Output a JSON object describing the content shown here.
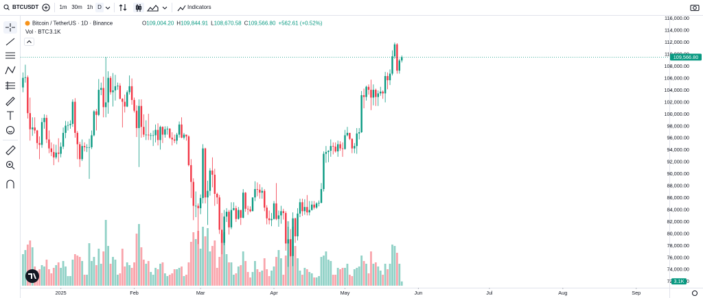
{
  "toolbar": {
    "symbol": "BTCUSDT",
    "intervals": [
      "1m",
      "30m",
      "1h",
      "D"
    ],
    "indicators": "Indicators"
  },
  "chart_data": {
    "type": "candlestick",
    "title": "Bitcoin / TetherUS · 1D · Binance",
    "ohlc": [
      {
        "label": "O",
        "value": "109,004.20"
      },
      {
        "label": "H",
        "value": "109,844.91"
      },
      {
        "label": "L",
        "value": "108,670.58"
      },
      {
        "label": "C",
        "value": "109,566.80"
      }
    ],
    "change": "+562.61 (+0.52%)",
    "volume_title": "Vol · BTC",
    "volume_label": "3.1K",
    "price_label": "109,566.80",
    "up_color": "#089981",
    "down_color": "#f23645",
    "ylim": [
      71000,
      116600
    ],
    "xlim": [
      -1,
      273
    ],
    "volume_ylim": [
      0,
      60000
    ],
    "yticks": [
      {
        "value": 72000,
        "label": "72,000.00"
      },
      {
        "value": 74000,
        "label": "74,000.00"
      },
      {
        "value": 76000,
        "label": "76,000.00"
      },
      {
        "value": 78000,
        "label": "78,000.00"
      },
      {
        "value": 80000,
        "label": "80,000.00"
      },
      {
        "value": 82000,
        "label": "82,000.00"
      },
      {
        "value": 84000,
        "label": "84,000.00"
      },
      {
        "value": 86000,
        "label": "86,000.00"
      },
      {
        "value": 88000,
        "label": "88,000.00"
      },
      {
        "value": 90000,
        "label": "90,000.00"
      },
      {
        "value": 92000,
        "label": "92,000.00"
      },
      {
        "value": 94000,
        "label": "94,000.00"
      },
      {
        "value": 96000,
        "label": "96,000.00"
      },
      {
        "value": 98000,
        "label": "98,000.00"
      },
      {
        "value": 100000,
        "label": "100,000.00"
      },
      {
        "value": 102000,
        "label": "102,000.00"
      },
      {
        "value": 104000,
        "label": "104,000.00"
      },
      {
        "value": 106000,
        "label": "106,000.00"
      },
      {
        "value": 108000,
        "label": "108,000.00"
      },
      {
        "value": 110000,
        "label": "110,000.00"
      },
      {
        "value": 112000,
        "label": "112,000.00"
      },
      {
        "value": 114000,
        "label": "114,000.00"
      },
      {
        "value": 116000,
        "label": "116,000.00"
      }
    ],
    "xticks": [
      {
        "value": 16,
        "label": "2025"
      },
      {
        "value": 47,
        "label": "Feb"
      },
      {
        "value": 75,
        "label": "Mar"
      },
      {
        "value": 106,
        "label": "Apr"
      },
      {
        "value": 136,
        "label": "May"
      },
      {
        "value": 167,
        "label": "Jun"
      },
      {
        "value": 197,
        "label": "Jul"
      },
      {
        "value": 228,
        "label": "Aug"
      },
      {
        "value": 259,
        "label": "Sep"
      }
    ],
    "candles": [
      [
        104500,
        107000,
        103700,
        106100
      ],
      [
        106100,
        108300,
        105300,
        106200
      ],
      [
        106200,
        106500,
        99300,
        100200
      ],
      [
        100200,
        102800,
        95600,
        97500
      ],
      [
        97500,
        99500,
        96400,
        97800
      ],
      [
        97800,
        99500,
        96800,
        97300
      ],
      [
        97300,
        97400,
        94200,
        95200
      ],
      [
        95200,
        96300,
        92500,
        94900
      ],
      [
        94900,
        99400,
        94400,
        98700
      ],
      [
        98700,
        100000,
        97600,
        99400
      ],
      [
        99400,
        99900,
        95200,
        95800
      ],
      [
        95800,
        97300,
        93500,
        94300
      ],
      [
        94300,
        95300,
        93000,
        93700
      ],
      [
        93700,
        95000,
        91500,
        92800
      ],
      [
        92800,
        94900,
        92500,
        93600
      ],
      [
        93600,
        96000,
        92000,
        93400
      ],
      [
        93400,
        95300,
        92800,
        94600
      ],
      [
        94600,
        97800,
        94200,
        96900
      ],
      [
        96900,
        98900,
        96000,
        98100
      ],
      [
        98100,
        98800,
        97300,
        98200
      ],
      [
        98200,
        99000,
        97600,
        98400
      ],
      [
        98400,
        102500,
        97900,
        102100
      ],
      [
        102100,
        102700,
        96100,
        96900
      ],
      [
        96900,
        97200,
        92500,
        95000
      ],
      [
        95000,
        95400,
        91200,
        92500
      ],
      [
        92500,
        95800,
        92200,
        94700
      ],
      [
        94700,
        95300,
        93800,
        94500
      ],
      [
        94500,
        95000,
        93700,
        94500
      ],
      [
        94500,
        95900,
        89200,
        94500
      ],
      [
        94500,
        97300,
        94200,
        96500
      ],
      [
        96500,
        100700,
        96300,
        100500
      ],
      [
        100500,
        100900,
        97300,
        99900
      ],
      [
        99900,
        105900,
        99700,
        104100
      ],
      [
        104100,
        105300,
        103200,
        104400
      ],
      [
        104400,
        106300,
        99500,
        101200
      ],
      [
        101200,
        109600,
        99500,
        102000
      ],
      [
        102000,
        107200,
        100100,
        106100
      ],
      [
        106100,
        106400,
        103300,
        103700
      ],
      [
        103700,
        106900,
        101300,
        104000
      ],
      [
        104000,
        106600,
        102300,
        104700
      ],
      [
        104700,
        105300,
        104100,
        104800
      ],
      [
        104800,
        105200,
        102500,
        102600
      ],
      [
        102600,
        102700,
        97800,
        102100
      ],
      [
        102100,
        103300,
        100300,
        101300
      ],
      [
        101300,
        104000,
        101200,
        103700
      ],
      [
        103700,
        106500,
        103300,
        104700
      ],
      [
        104700,
        106000,
        101600,
        102400
      ],
      [
        102400,
        102800,
        100300,
        100600
      ],
      [
        100600,
        101500,
        96200,
        97700
      ],
      [
        97700,
        102500,
        91200,
        101400
      ],
      [
        101400,
        102500,
        96100,
        97900
      ],
      [
        97900,
        100000,
        96200,
        96600
      ],
      [
        96600,
        99000,
        95700,
        96600
      ],
      [
        96600,
        100100,
        95700,
        96500
      ],
      [
        96500,
        96900,
        95700,
        96500
      ],
      [
        96500,
        97300,
        94700,
        96500
      ],
      [
        96500,
        98300,
        95300,
        97400
      ],
      [
        97400,
        98500,
        94800,
        95700
      ],
      [
        95700,
        98100,
        94100,
        97900
      ],
      [
        97900,
        98000,
        95200,
        96600
      ],
      [
        96600,
        98000,
        96100,
        97500
      ],
      [
        97500,
        98000,
        96600,
        97600
      ],
      [
        97600,
        97700,
        95900,
        96100
      ],
      [
        96100,
        97000,
        94800,
        95800
      ],
      [
        95800,
        96600,
        95200,
        95600
      ],
      [
        95600,
        96900,
        95000,
        96600
      ],
      [
        96600,
        98800,
        96100,
        98300
      ],
      [
        98300,
        99500,
        96000,
        96100
      ],
      [
        96100,
        96900,
        95800,
        96600
      ],
      [
        96600,
        96600,
        95600,
        96300
      ],
      [
        96300,
        96500,
        91300,
        91500
      ],
      [
        91500,
        92500,
        86000,
        88700
      ],
      [
        88700,
        89300,
        82300,
        84700
      ],
      [
        84700,
        87100,
        82800,
        84700
      ],
      [
        84700,
        85100,
        78300,
        84300
      ],
      [
        84300,
        86600,
        83300,
        86000
      ],
      [
        86000,
        95000,
        85100,
        94300
      ],
      [
        94300,
        94400,
        85100,
        86100
      ],
      [
        86100,
        88900,
        81500,
        87200
      ],
      [
        87200,
        91000,
        86400,
        90600
      ],
      [
        90600,
        92800,
        87800,
        89900
      ],
      [
        89900,
        90900,
        84700,
        86700
      ],
      [
        86700,
        86900,
        85000,
        86100
      ],
      [
        86100,
        86500,
        80000,
        80700
      ],
      [
        80700,
        83500,
        76600,
        78500
      ],
      [
        78500,
        84000,
        78100,
        82900
      ],
      [
        82900,
        84300,
        82000,
        83700
      ],
      [
        83700,
        84000,
        79900,
        81100
      ],
      [
        81100,
        85300,
        80800,
        84000
      ],
      [
        84000,
        85300,
        83900,
        84300
      ],
      [
        84300,
        84700,
        82000,
        82500
      ],
      [
        82500,
        84500,
        82400,
        84000
      ],
      [
        84000,
        84000,
        81500,
        82700
      ],
      [
        82700,
        87500,
        82600,
        86900
      ],
      [
        86900,
        87000,
        83700,
        84200
      ],
      [
        84200,
        84700,
        83200,
        84100
      ],
      [
        84100,
        84600,
        83600,
        83800
      ],
      [
        83800,
        86100,
        83800,
        86100
      ],
      [
        86100,
        88800,
        85500,
        87500
      ],
      [
        87500,
        88600,
        86300,
        87400
      ],
      [
        87400,
        88300,
        85900,
        86900
      ],
      [
        86900,
        87800,
        85900,
        87200
      ],
      [
        87200,
        87500,
        83800,
        84400
      ],
      [
        84400,
        84800,
        81600,
        82600
      ],
      [
        82600,
        83900,
        81600,
        82300
      ],
      [
        82300,
        83500,
        81300,
        82500
      ],
      [
        82500,
        85500,
        82400,
        85100
      ],
      [
        85100,
        88500,
        82300,
        82500
      ],
      [
        82500,
        83900,
        81200,
        83100
      ],
      [
        83100,
        84700,
        81700,
        83800
      ],
      [
        83800,
        84200,
        82400,
        83500
      ],
      [
        83500,
        83800,
        77200,
        78400
      ],
      [
        78400,
        81200,
        74500,
        79100
      ],
      [
        79100,
        80800,
        76200,
        76300
      ],
      [
        76300,
        83600,
        74600,
        82600
      ],
      [
        82600,
        82700,
        78500,
        79600
      ],
      [
        79600,
        84300,
        78900,
        83400
      ],
      [
        83400,
        85900,
        82800,
        85300
      ],
      [
        85300,
        85900,
        83000,
        83800
      ],
      [
        83800,
        85800,
        83200,
        84500
      ],
      [
        84500,
        86500,
        83100,
        83600
      ],
      [
        83600,
        85500,
        83100,
        84000
      ],
      [
        84000,
        85500,
        83900,
        84900
      ],
      [
        84900,
        85500,
        84100,
        84400
      ],
      [
        84400,
        85300,
        84200,
        85100
      ],
      [
        85100,
        85600,
        84600,
        85200
      ],
      [
        85200,
        88500,
        85100,
        87500
      ],
      [
        87500,
        93800,
        87100,
        93400
      ],
      [
        93400,
        94700,
        91900,
        93700
      ],
      [
        93700,
        94000,
        92000,
        93900
      ],
      [
        93900,
        95800,
        92900,
        94700
      ],
      [
        94700,
        95300,
        93300,
        94600
      ],
      [
        94600,
        95300,
        93600,
        93800
      ],
      [
        93800,
        95600,
        92900,
        95000
      ],
      [
        95000,
        95500,
        93900,
        94300
      ],
      [
        94300,
        95300,
        92900,
        94200
      ],
      [
        94200,
        97400,
        94100,
        96500
      ],
      [
        96500,
        97900,
        96300,
        96900
      ],
      [
        96900,
        96900,
        95700,
        95900
      ],
      [
        95900,
        96000,
        93500,
        94300
      ],
      [
        94300,
        95200,
        93500,
        94700
      ],
      [
        94700,
        97700,
        93400,
        96800
      ],
      [
        96800,
        97700,
        95800,
        97000
      ],
      [
        97000,
        103900,
        96900,
        103200
      ],
      [
        103200,
        104300,
        101000,
        102900
      ],
      [
        102900,
        104800,
        102300,
        104600
      ],
      [
        104600,
        105000,
        103300,
        104100
      ],
      [
        104100,
        105800,
        100700,
        102800
      ],
      [
        102800,
        105000,
        101500,
        104100
      ],
      [
        104100,
        104300,
        101400,
        102900
      ],
      [
        102900,
        104000,
        101400,
        103500
      ],
      [
        103500,
        104600,
        103100,
        103800
      ],
      [
        103800,
        104000,
        102600,
        103500
      ],
      [
        103500,
        107100,
        102000,
        106400
      ],
      [
        106400,
        107000,
        104200,
        105700
      ],
      [
        105700,
        107500,
        104900,
        106800
      ],
      [
        106800,
        110700,
        106500,
        109700
      ],
      [
        109700,
        112000,
        109300,
        111700
      ],
      [
        111700,
        111900,
        106800,
        107300
      ],
      [
        107300,
        109300,
        106800,
        109000
      ],
      [
        109004.2,
        109844.91,
        108670.58,
        109566.8
      ]
    ],
    "volumes": [
      23000,
      26000,
      30000,
      33000,
      28000,
      14000,
      11000,
      12000,
      15000,
      14000,
      19000,
      12000,
      9000,
      13000,
      15000,
      17000,
      13000,
      18000,
      14000,
      7000,
      7000,
      19000,
      23000,
      22000,
      21000,
      18000,
      8000,
      8000,
      31000,
      18000,
      21000,
      15000,
      27000,
      16000,
      25000,
      48000,
      29000,
      16000,
      21000,
      19000,
      8000,
      9000,
      27000,
      14000,
      17000,
      15000,
      13000,
      17000,
      38000,
      45000,
      28000,
      19000,
      16000,
      18000,
      10000,
      8000,
      13000,
      12000,
      16000,
      17000,
      9000,
      7000,
      8000,
      9000,
      12000,
      12000,
      13000,
      14000,
      7000,
      8000,
      17000,
      32000,
      39000,
      34000,
      40000,
      27000,
      43000,
      36000,
      42000,
      25000,
      29000,
      33000,
      13000,
      21000,
      38000,
      39000,
      23000,
      17000,
      17000,
      8000,
      9000,
      14000,
      15000,
      25000,
      18000,
      10000,
      6000,
      10000,
      18000,
      12000,
      10000,
      11000,
      20000,
      12000,
      7000,
      11000,
      14000,
      21000,
      26000,
      20000,
      8000,
      22000,
      47000,
      34000,
      43000,
      29000,
      20000,
      11000,
      8000,
      13000,
      12000,
      10000,
      9000,
      6000,
      6000,
      7000,
      21000,
      22000,
      25000,
      19000,
      18000,
      8000,
      8000,
      13000,
      12000,
      13000,
      13000,
      16000,
      8000,
      7000,
      12000,
      13000,
      14000,
      22000,
      18000,
      16000,
      9000,
      25000,
      16000,
      17000,
      14000,
      11000,
      8000,
      16000,
      12000,
      16000,
      30000,
      29000,
      24000,
      16000,
      3100
    ]
  }
}
